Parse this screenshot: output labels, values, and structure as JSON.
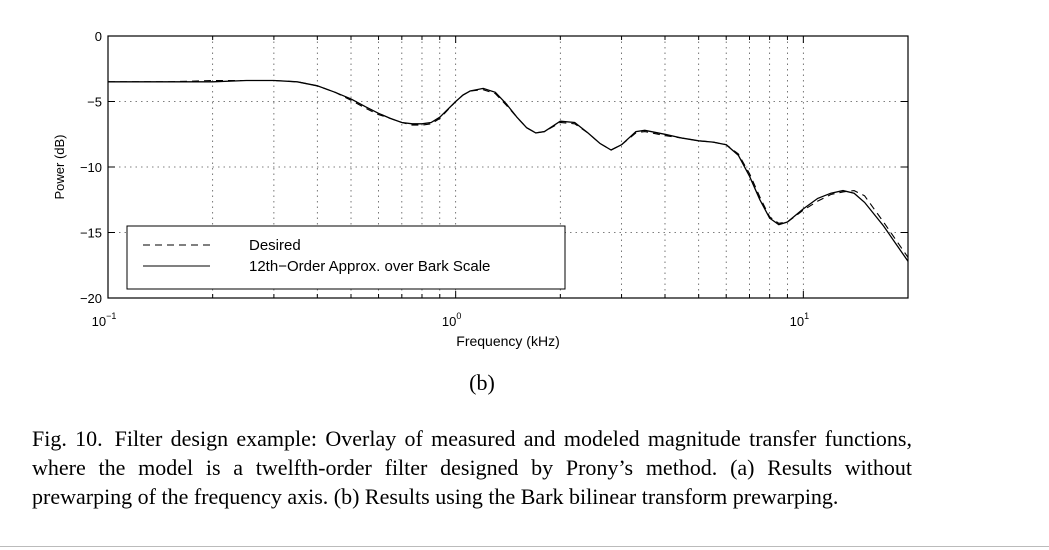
{
  "chart_data": {
    "type": "line",
    "ylabel": "Power (dB)",
    "xlabel": "Frequency (kHz)",
    "xscale": "log",
    "xlim": [
      0.1,
      20
    ],
    "ylim": [
      -20,
      0
    ],
    "x_ticks": [
      {
        "value": 0.1,
        "base": "10",
        "exp": "−1"
      },
      {
        "value": 1,
        "base": "10",
        "exp": "0"
      },
      {
        "value": 10,
        "base": "10",
        "exp": "1"
      }
    ],
    "y_ticks": [
      {
        "value": 0,
        "label": "0"
      },
      {
        "value": -5,
        "label": "−5"
      },
      {
        "value": -10,
        "label": "−10"
      },
      {
        "value": -15,
        "label": "−15"
      },
      {
        "value": -20,
        "label": "−20"
      }
    ],
    "grid": true,
    "legend_position": "lower-left",
    "series": [
      {
        "name": "Desired",
        "style": "dashed",
        "x": [
          0.1,
          0.15,
          0.2,
          0.25,
          0.3,
          0.35,
          0.4,
          0.45,
          0.5,
          0.55,
          0.6,
          0.65,
          0.7,
          0.75,
          0.8,
          0.85,
          0.9,
          1.0,
          1.05,
          1.1,
          1.2,
          1.3,
          1.4,
          1.5,
          1.6,
          1.7,
          1.8,
          2.0,
          2.2,
          2.4,
          2.6,
          2.8,
          3.0,
          3.3,
          3.5,
          4.0,
          4.5,
          5.0,
          5.5,
          6.0,
          6.5,
          7.0,
          7.5,
          8.0,
          8.5,
          9.0,
          10.0,
          11.0,
          12.0,
          13.0,
          14.0,
          15.0,
          17.0,
          20.0
        ],
        "y": [
          -3.5,
          -3.5,
          -3.4,
          -3.4,
          -3.4,
          -3.5,
          -3.8,
          -4.3,
          -4.9,
          -5.5,
          -6.0,
          -6.3,
          -6.6,
          -6.8,
          -6.8,
          -6.7,
          -6.3,
          -5.0,
          -4.5,
          -4.2,
          -4.1,
          -4.4,
          -5.3,
          -6.2,
          -7.0,
          -7.4,
          -7.3,
          -6.6,
          -6.7,
          -7.4,
          -8.2,
          -8.7,
          -8.3,
          -7.4,
          -7.3,
          -7.6,
          -7.8,
          -8.0,
          -8.1,
          -8.3,
          -9.0,
          -10.5,
          -12.3,
          -13.8,
          -14.3,
          -14.2,
          -13.3,
          -12.6,
          -12.1,
          -11.9,
          -11.8,
          -12.2,
          -14.2,
          -16.9
        ]
      },
      {
        "name": "12th−Order Approx. over Bark Scale",
        "style": "solid",
        "x": [
          0.1,
          0.15,
          0.2,
          0.25,
          0.3,
          0.35,
          0.4,
          0.45,
          0.5,
          0.55,
          0.6,
          0.65,
          0.7,
          0.75,
          0.8,
          0.85,
          0.9,
          1.0,
          1.05,
          1.1,
          1.2,
          1.3,
          1.4,
          1.5,
          1.6,
          1.7,
          1.8,
          2.0,
          2.2,
          2.4,
          2.6,
          2.8,
          3.0,
          3.3,
          3.5,
          4.0,
          4.5,
          5.0,
          5.5,
          6.0,
          6.5,
          7.0,
          7.5,
          8.0,
          8.5,
          9.0,
          10.0,
          11.0,
          12.0,
          13.0,
          14.0,
          15.0,
          17.0,
          20.0
        ],
        "y": [
          -3.5,
          -3.5,
          -3.5,
          -3.4,
          -3.4,
          -3.5,
          -3.8,
          -4.3,
          -4.8,
          -5.4,
          -5.9,
          -6.3,
          -6.6,
          -6.7,
          -6.7,
          -6.6,
          -6.2,
          -5.0,
          -4.5,
          -4.2,
          -4.0,
          -4.3,
          -5.2,
          -6.2,
          -7.0,
          -7.4,
          -7.3,
          -6.5,
          -6.6,
          -7.4,
          -8.2,
          -8.7,
          -8.3,
          -7.3,
          -7.2,
          -7.5,
          -7.8,
          -8.0,
          -8.1,
          -8.3,
          -9.1,
          -10.7,
          -12.5,
          -13.9,
          -14.4,
          -14.2,
          -13.2,
          -12.4,
          -12.0,
          -11.8,
          -12.0,
          -12.7,
          -14.5,
          -17.2
        ]
      }
    ]
  },
  "figure": {
    "sublabel": "(b)",
    "caption_number": "Fig. 10.",
    "caption_text": "Filter design example: Overlay of measured and modeled magnitude transfer functions, where the model is a twelfth-order filter designed by Prony’s method. (a) Results without prewarping of the frequency axis. (b) Results using the Bark bilinear transform prewarping."
  }
}
